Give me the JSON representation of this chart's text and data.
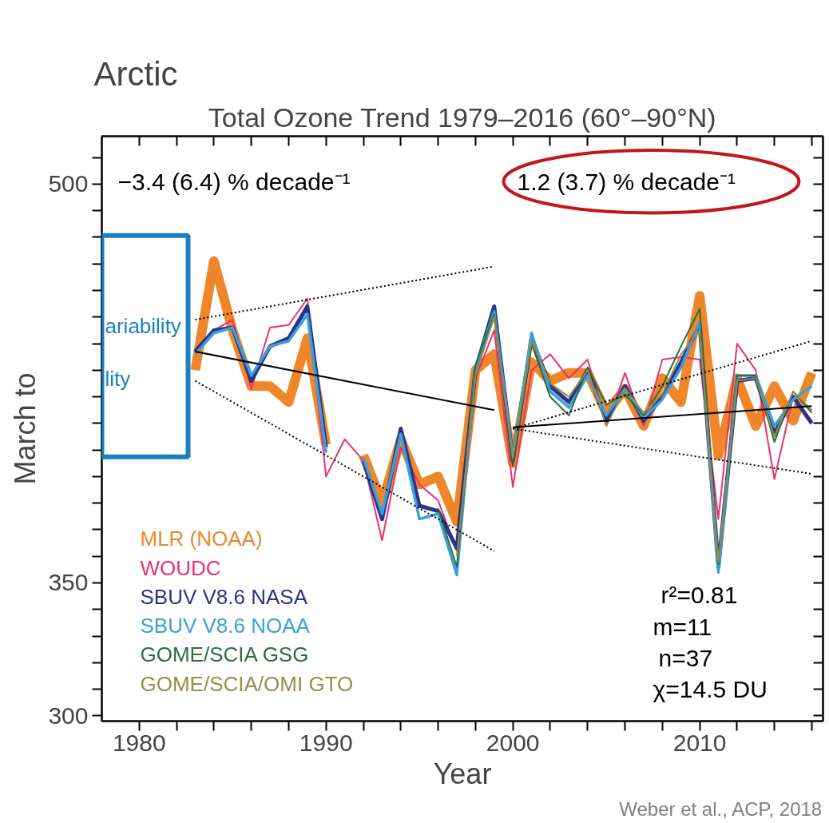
{
  "chart_data": {
    "type": "line",
    "title": "Arctic",
    "subtitle": "Total Ozone Trend 1979–2016 (60°–90°N)",
    "xlabel": "Year",
    "ylabel": "March to",
    "x": [
      1983,
      1984,
      1985,
      1986,
      1987,
      1988,
      1989,
      1990,
      1991,
      1992,
      1993,
      1994,
      1995,
      1996,
      1997,
      1998,
      1999,
      2000,
      2001,
      2002,
      2003,
      2004,
      2005,
      2006,
      2007,
      2008,
      2009,
      2010,
      2011,
      2012,
      2013,
      2014,
      2015,
      2016
    ],
    "series": [
      {
        "name": "MLR (NOAA)",
        "color": "#f0862a",
        "values": [
          430,
          471,
          445,
          424,
          424,
          418,
          442,
          402,
          null,
          398,
          380,
          404,
          387,
          390,
          373,
          430,
          436,
          395,
          433,
          426,
          429,
          429,
          414,
          423,
          409,
          427,
          418,
          458,
          398,
          427,
          409,
          424,
          411,
          429
        ]
      },
      {
        "name": "WOUDC",
        "color": "#e8336f",
        "values": [
          437,
          445,
          449,
          423,
          446,
          447,
          457,
          390,
          404,
          396,
          366,
          401,
          387,
          381,
          362,
          427,
          445,
          386,
          430,
          436,
          427,
          434,
          409,
          429,
          409,
          434,
          435,
          434,
          374,
          440,
          430,
          389,
          420,
          411
        ]
      },
      {
        "name": "SBUV V8.6 NASA",
        "color": "#2b3486",
        "values": [
          437,
          445,
          446,
          426,
          439,
          442,
          454,
          401,
          null,
          396,
          374,
          408,
          379,
          377,
          363,
          430,
          454,
          396,
          442,
          424,
          418,
          430,
          411,
          424,
          411,
          420,
          433,
          447,
          356,
          426,
          427,
          406,
          420,
          410
        ]
      },
      {
        "name": "SBUV V8.6 NOAA",
        "color": "#3aa0db",
        "values": [
          436,
          444,
          446,
          428,
          439,
          441,
          451,
          399,
          null,
          397,
          376,
          406,
          374,
          376,
          353,
          431,
          452,
          397,
          444,
          422,
          416,
          428,
          413,
          423,
          412,
          419,
          431,
          448,
          354,
          428,
          428,
          409,
          419,
          424
        ]
      },
      {
        "name": "GOME/SCIA GSG",
        "color": "#2a6e3a",
        "values": [
          null,
          null,
          null,
          null,
          null,
          null,
          null,
          null,
          null,
          null,
          null,
          null,
          null,
          378,
          356,
          432,
          451,
          394,
          440,
          420,
          413,
          431,
          417,
          421,
          413,
          424,
          439,
          453,
          357,
          428,
          428,
          403,
          422,
          414
        ]
      },
      {
        "name": "GOME/SCIA/OMI GTO",
        "color": "#9a8b4a",
        "values": [
          null,
          null,
          null,
          null,
          null,
          null,
          null,
          null,
          null,
          null,
          null,
          null,
          null,
          null,
          360,
          428,
          450,
          397,
          441,
          425,
          420,
          430,
          409,
          423,
          414,
          421,
          436,
          445,
          358,
          426,
          427,
          405,
          422,
          415
        ]
      },
      {
        "type": "line",
        "color": "#000000",
        "line_style": "solid",
        "x": [
          1983,
          1999
        ],
        "values": [
          437,
          415
        ]
      },
      {
        "type": "line",
        "color": "#000000",
        "line_style": "dotted",
        "x": [
          1983,
          1999
        ],
        "values": [
          449,
          469
        ]
      },
      {
        "type": "line",
        "color": "#000000",
        "line_style": "dotted",
        "x": [
          1983,
          1999
        ],
        "values": [
          426,
          362
        ]
      },
      {
        "type": "line",
        "color": "#000000",
        "line_style": "solid",
        "x": [
          2000,
          2016
        ],
        "values": [
          408.5,
          416.5
        ]
      },
      {
        "type": "line",
        "color": "#000000",
        "line_style": "dotted",
        "x": [
          2000,
          2016
        ],
        "values": [
          408,
          441
        ]
      },
      {
        "type": "line",
        "color": "#000000",
        "line_style": "dotted",
        "x": [
          2000,
          2016
        ],
        "values": [
          408,
          391
        ]
      }
    ],
    "xlim": [
      1978,
      2016.6
    ],
    "ylim": [
      298,
      518
    ],
    "xticks": [
      1980,
      {
        "value": 1982,
        "label": null
      },
      {
        "value": 1984,
        "label": null
      },
      {
        "value": 1986,
        "label": null
      },
      {
        "value": 1988,
        "label": null
      },
      1990,
      {
        "value": 1992,
        "label": null
      },
      {
        "value": 1994,
        "label": null
      },
      {
        "value": 1996,
        "label": null
      },
      {
        "value": 1998,
        "label": null
      },
      2000,
      {
        "value": 2002,
        "label": null
      },
      {
        "value": 2004,
        "label": null
      },
      {
        "value": 2006,
        "label": null
      },
      {
        "value": 2008,
        "label": null
      },
      2010,
      {
        "value": 2012,
        "label": null
      },
      {
        "value": 2014,
        "label": null
      },
      {
        "value": 2016,
        "label": null
      }
    ],
    "yticks": [
      300,
      {
        "value": 310,
        "label": null
      },
      {
        "value": 320,
        "label": null
      },
      {
        "value": 330,
        "label": null
      },
      {
        "value": 340,
        "label": null
      },
      350,
      {
        "value": 360,
        "label": null
      },
      {
        "value": 370,
        "label": null
      },
      {
        "value": 380,
        "label": null
      },
      {
        "value": 390,
        "label": null
      },
      {
        "value": 400,
        "label": null
      },
      {
        "value": 410,
        "label": null
      },
      {
        "value": 420,
        "label": null
      },
      {
        "value": 430,
        "label": null
      },
      {
        "value": 440,
        "label": null
      },
      {
        "value": 450,
        "label": null
      },
      {
        "value": 460,
        "label": null
      },
      {
        "value": 470,
        "label": null
      },
      {
        "value": 480,
        "label": null
      },
      {
        "value": 490,
        "label": null
      },
      500,
      {
        "value": 510,
        "label": null
      }
    ],
    "annotations": [
      "−3.4 (6.4) % decade⁻¹",
      "1.2 (3.7) % decade⁻¹",
      "r²=0.81",
      "m=11",
      "n=37",
      "χ=14.5 DU",
      "ariability",
      "lity",
      "Weber et al., ACP, 2018"
    ],
    "legend": "bottom left",
    "grid": false,
    "marker": "none",
    "line_style": "solid"
  }
}
